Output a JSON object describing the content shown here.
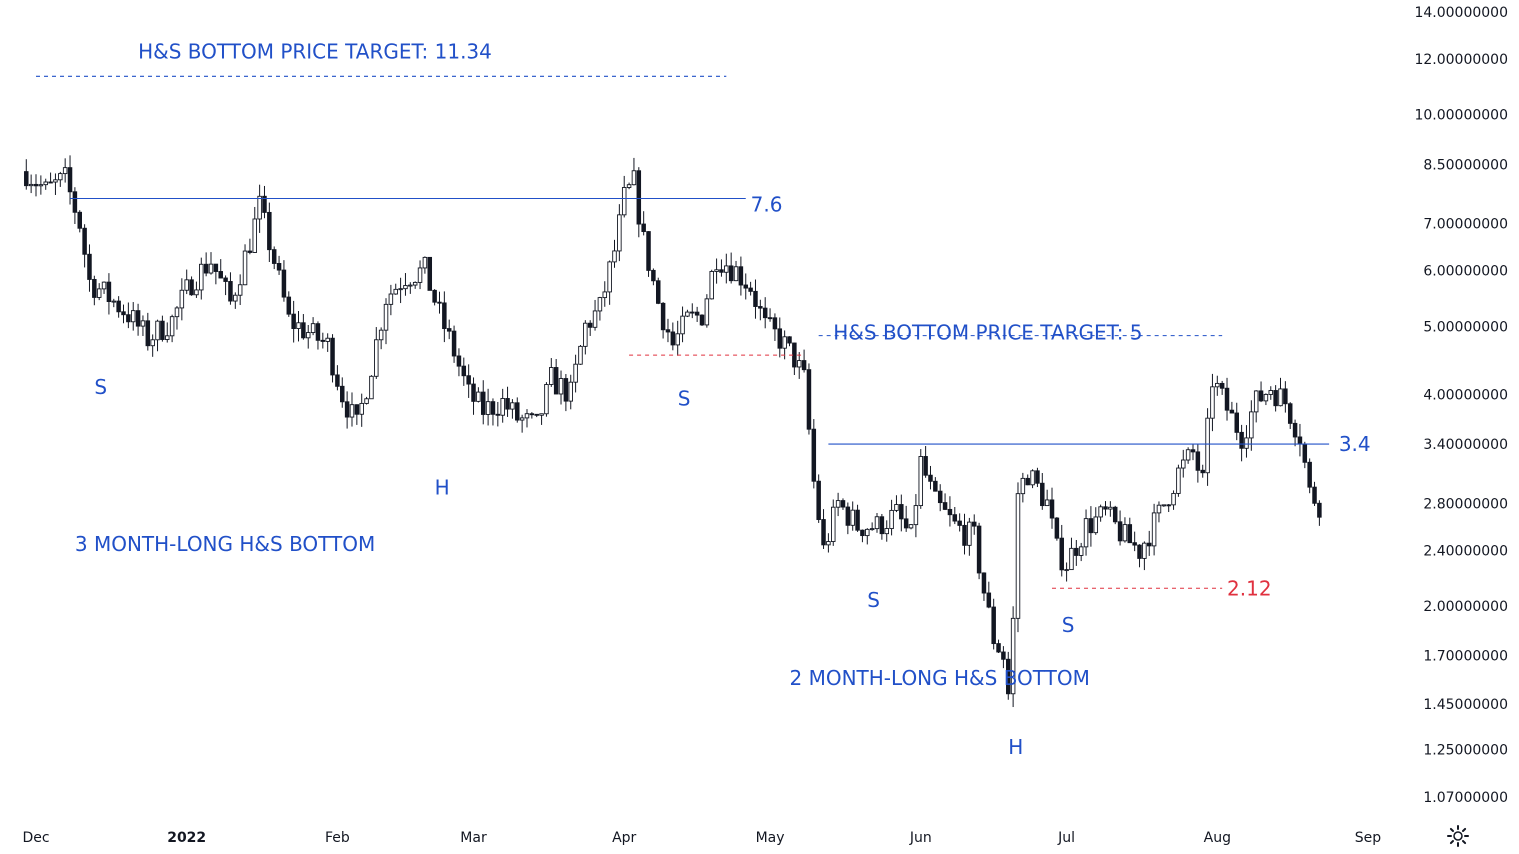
{
  "chart_data": {
    "type": "candlestick",
    "y_scale": "log",
    "ylim": [
      1.0,
      14.5
    ],
    "y_ticks": [
      "14.00000000",
      "12.00000000",
      "10.00000000",
      "8.50000000",
      "7.00000000",
      "6.00000000",
      "5.00000000",
      "4.00000000",
      "3.40000000",
      "2.80000000",
      "2.40000000",
      "2.00000000",
      "1.70000000",
      "1.45000000",
      "1.25000000",
      "1.07000000"
    ],
    "x_ticks": [
      {
        "label": "Dec",
        "date": "2021-12-01",
        "bold": false
      },
      {
        "label": "2022",
        "date": "2022-01-01",
        "bold": true
      },
      {
        "label": "Feb",
        "date": "2022-02-01",
        "bold": false
      },
      {
        "label": "Mar",
        "date": "2022-03-01",
        "bold": false
      },
      {
        "label": "Apr",
        "date": "2022-04-01",
        "bold": false
      },
      {
        "label": "May",
        "date": "2022-05-01",
        "bold": false
      },
      {
        "label": "Jun",
        "date": "2022-06-01",
        "bold": false
      },
      {
        "label": "Jul",
        "date": "2022-07-01",
        "bold": false
      },
      {
        "label": "Aug",
        "date": "2022-08-01",
        "bold": false
      },
      {
        "label": "Sep",
        "date": "2022-09-01",
        "bold": false
      }
    ],
    "price_path": [
      [
        "2021-11-29",
        8.3
      ],
      [
        "2021-12-03",
        7.8
      ],
      [
        "2021-12-07",
        8.1
      ],
      [
        "2021-12-10",
        7.0
      ],
      [
        "2021-12-12",
        5.8
      ],
      [
        "2021-12-16",
        5.5
      ],
      [
        "2021-12-20",
        5.2
      ],
      [
        "2021-12-24",
        4.8
      ],
      [
        "2021-12-29",
        5.1
      ],
      [
        "2022-01-02",
        5.8
      ],
      [
        "2022-01-06",
        6.2
      ],
      [
        "2022-01-10",
        5.4
      ],
      [
        "2022-01-14",
        6.6
      ],
      [
        "2022-01-16",
        7.4
      ],
      [
        "2022-01-19",
        6.2
      ],
      [
        "2022-01-22",
        5.1
      ],
      [
        "2022-01-26",
        4.9
      ],
      [
        "2022-01-30",
        4.7
      ],
      [
        "2022-02-02",
        4.0
      ],
      [
        "2022-02-05",
        3.6
      ],
      [
        "2022-02-08",
        4.4
      ],
      [
        "2022-02-11",
        5.5
      ],
      [
        "2022-02-15",
        5.9
      ],
      [
        "2022-02-19",
        6.0
      ],
      [
        "2022-02-22",
        5.2
      ],
      [
        "2022-02-25",
        4.6
      ],
      [
        "2022-02-28",
        4.0
      ],
      [
        "2022-03-03",
        3.8
      ],
      [
        "2022-03-07",
        3.9
      ],
      [
        "2022-03-10",
        3.7
      ],
      [
        "2022-03-14",
        3.6
      ],
      [
        "2022-03-17",
        4.2
      ],
      [
        "2022-03-21",
        4.0
      ],
      [
        "2022-03-24",
        5.0
      ],
      [
        "2022-03-27",
        5.3
      ],
      [
        "2022-03-30",
        6.4
      ],
      [
        "2022-04-01",
        7.6
      ],
      [
        "2022-04-03",
        8.0
      ],
      [
        "2022-04-05",
        6.6
      ],
      [
        "2022-04-08",
        5.4
      ],
      [
        "2022-04-11",
        4.7
      ],
      [
        "2022-04-14",
        5.1
      ],
      [
        "2022-04-17",
        5.2
      ],
      [
        "2022-04-20",
        6.3
      ],
      [
        "2022-04-24",
        6.0
      ],
      [
        "2022-04-27",
        5.7
      ],
      [
        "2022-04-30",
        5.0
      ],
      [
        "2022-05-03",
        4.8
      ],
      [
        "2022-05-06",
        4.5
      ],
      [
        "2022-05-08",
        4.2
      ],
      [
        "2022-05-10",
        3.0
      ],
      [
        "2022-05-12",
        2.4
      ],
      [
        "2022-05-15",
        2.8
      ],
      [
        "2022-05-19",
        2.6
      ],
      [
        "2022-05-23",
        2.6
      ],
      [
        "2022-05-27",
        2.7
      ],
      [
        "2022-05-30",
        2.5
      ],
      [
        "2022-06-01",
        3.2
      ],
      [
        "2022-06-04",
        2.8
      ],
      [
        "2022-06-08",
        2.6
      ],
      [
        "2022-06-12",
        2.5
      ],
      [
        "2022-06-14",
        2.1
      ],
      [
        "2022-06-16",
        1.8
      ],
      [
        "2022-06-18",
        1.7
      ],
      [
        "2022-06-19",
        1.5
      ],
      [
        "2022-06-20",
        1.9
      ],
      [
        "2022-06-21",
        2.9
      ],
      [
        "2022-06-23",
        3.1
      ],
      [
        "2022-06-27",
        2.8
      ],
      [
        "2022-06-29",
        2.4
      ],
      [
        "2022-07-01",
        2.3
      ],
      [
        "2022-07-05",
        2.6
      ],
      [
        "2022-07-09",
        2.7
      ],
      [
        "2022-07-13",
        2.5
      ],
      [
        "2022-07-16",
        2.4
      ],
      [
        "2022-07-20",
        2.7
      ],
      [
        "2022-07-24",
        3.1
      ],
      [
        "2022-07-27",
        3.3
      ],
      [
        "2022-07-29",
        3.0
      ],
      [
        "2022-07-31",
        4.2
      ],
      [
        "2022-08-04",
        3.7
      ],
      [
        "2022-08-06",
        3.5
      ],
      [
        "2022-08-09",
        3.9
      ],
      [
        "2022-08-12",
        4.1
      ],
      [
        "2022-08-15",
        3.9
      ],
      [
        "2022-08-18",
        3.5
      ],
      [
        "2022-08-20",
        2.9
      ],
      [
        "2022-08-22",
        2.8
      ]
    ],
    "hlines": [
      {
        "y": 7.6,
        "from": "2021-12-08",
        "to": "2022-04-26",
        "style": "solid",
        "color": "#2150c8"
      },
      {
        "y": 11.34,
        "from": "2021-12-01",
        "to": "2022-04-22",
        "style": "dashed",
        "color": "#2150c8"
      },
      {
        "y": 4.55,
        "from": "2022-04-02",
        "to": "2022-05-08",
        "style": "dashed",
        "color": "#e0313f"
      },
      {
        "y": 3.4,
        "from": "2022-05-13",
        "to": "2022-08-24",
        "style": "solid",
        "color": "#2150c8"
      },
      {
        "y": 4.85,
        "from": "2022-05-11",
        "to": "2022-08-02",
        "style": "dashed",
        "color": "#2150c8"
      },
      {
        "y": 2.12,
        "from": "2022-06-28",
        "to": "2022-08-02",
        "style": "dashed",
        "color": "#e0313f"
      }
    ],
    "annotations": [
      {
        "text": "H&S BOTTOM PRICE TARGET: 11.34",
        "date": "2021-12-22",
        "y": 12.3,
        "color": "#2150c8"
      },
      {
        "text": "7.6",
        "date": "2022-04-27",
        "y": 7.45,
        "color": "#2150c8"
      },
      {
        "text": "S",
        "date": "2021-12-13",
        "y": 4.1,
        "color": "#2150c8"
      },
      {
        "text": "H",
        "date": "2022-02-21",
        "y": 2.95,
        "color": "#2150c8"
      },
      {
        "text": "S",
        "date": "2022-04-12",
        "y": 3.95,
        "color": "#2150c8"
      },
      {
        "text": "3 MONTH-LONG H&S BOTTOM",
        "date": "2021-12-09",
        "y": 2.45,
        "color": "#2150c8"
      },
      {
        "text": "H&S BOTTOM PRICE TARGET: 5",
        "date": "2022-05-14",
        "y": 4.9,
        "color": "#2150c8"
      },
      {
        "text": "3.4",
        "date": "2022-08-26",
        "y": 3.4,
        "color": "#2150c8"
      },
      {
        "text": "S",
        "date": "2022-05-21",
        "y": 2.04,
        "color": "#2150c8"
      },
      {
        "text": "S",
        "date": "2022-06-30",
        "y": 1.88,
        "color": "#2150c8"
      },
      {
        "text": "2.12",
        "date": "2022-08-03",
        "y": 2.12,
        "color": "#e0313f"
      },
      {
        "text": "2 MONTH-LONG H&S BOTTOM",
        "date": "2022-05-05",
        "y": 1.58,
        "color": "#2150c8"
      },
      {
        "text": "H",
        "date": "2022-06-19",
        "y": 1.26,
        "color": "#2150c8"
      }
    ]
  },
  "colors": {
    "up": "#ffffff",
    "down": "#131722",
    "wick": "#131722",
    "blue": "#2150c8",
    "red": "#e0313f",
    "axis_text": "#131722"
  },
  "toolbar": {
    "settings_icon": "gear-icon"
  }
}
